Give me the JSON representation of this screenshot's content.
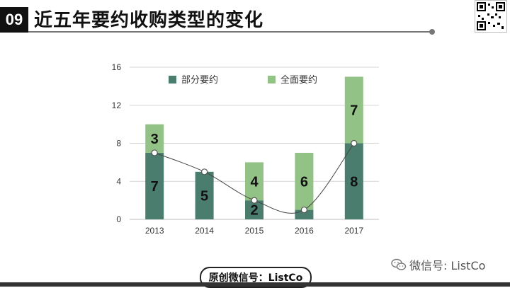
{
  "header": {
    "number": "09",
    "title": "近五年要约收购类型的变化"
  },
  "footer": {
    "badge": "原创微信号：ListCo",
    "wechat": "微信号: ListCo"
  },
  "colors": {
    "partial": "#4a7d6d",
    "full": "#93c287",
    "grid": "#d6d6d6",
    "header_box": "#111111"
  },
  "chart_data": {
    "type": "bar",
    "stacked": true,
    "categories": [
      "2013",
      "2014",
      "2015",
      "2016",
      "2017"
    ],
    "series": [
      {
        "name": "部分要约",
        "values": [
          7,
          5,
          2,
          1,
          8
        ],
        "labels": [
          "7",
          "5",
          "2",
          "",
          "8"
        ]
      },
      {
        "name": "全面要约",
        "values": [
          3,
          0,
          4,
          6,
          7
        ],
        "labels": [
          "3",
          "",
          "4",
          "6",
          "7"
        ]
      }
    ],
    "trend_line": {
      "values": [
        7,
        5,
        2,
        1,
        8
      ],
      "smooth": true
    },
    "ylim": [
      0,
      16
    ],
    "yticks": [
      0,
      4,
      8,
      12,
      16
    ],
    "grid": true,
    "legend_position": "top"
  }
}
